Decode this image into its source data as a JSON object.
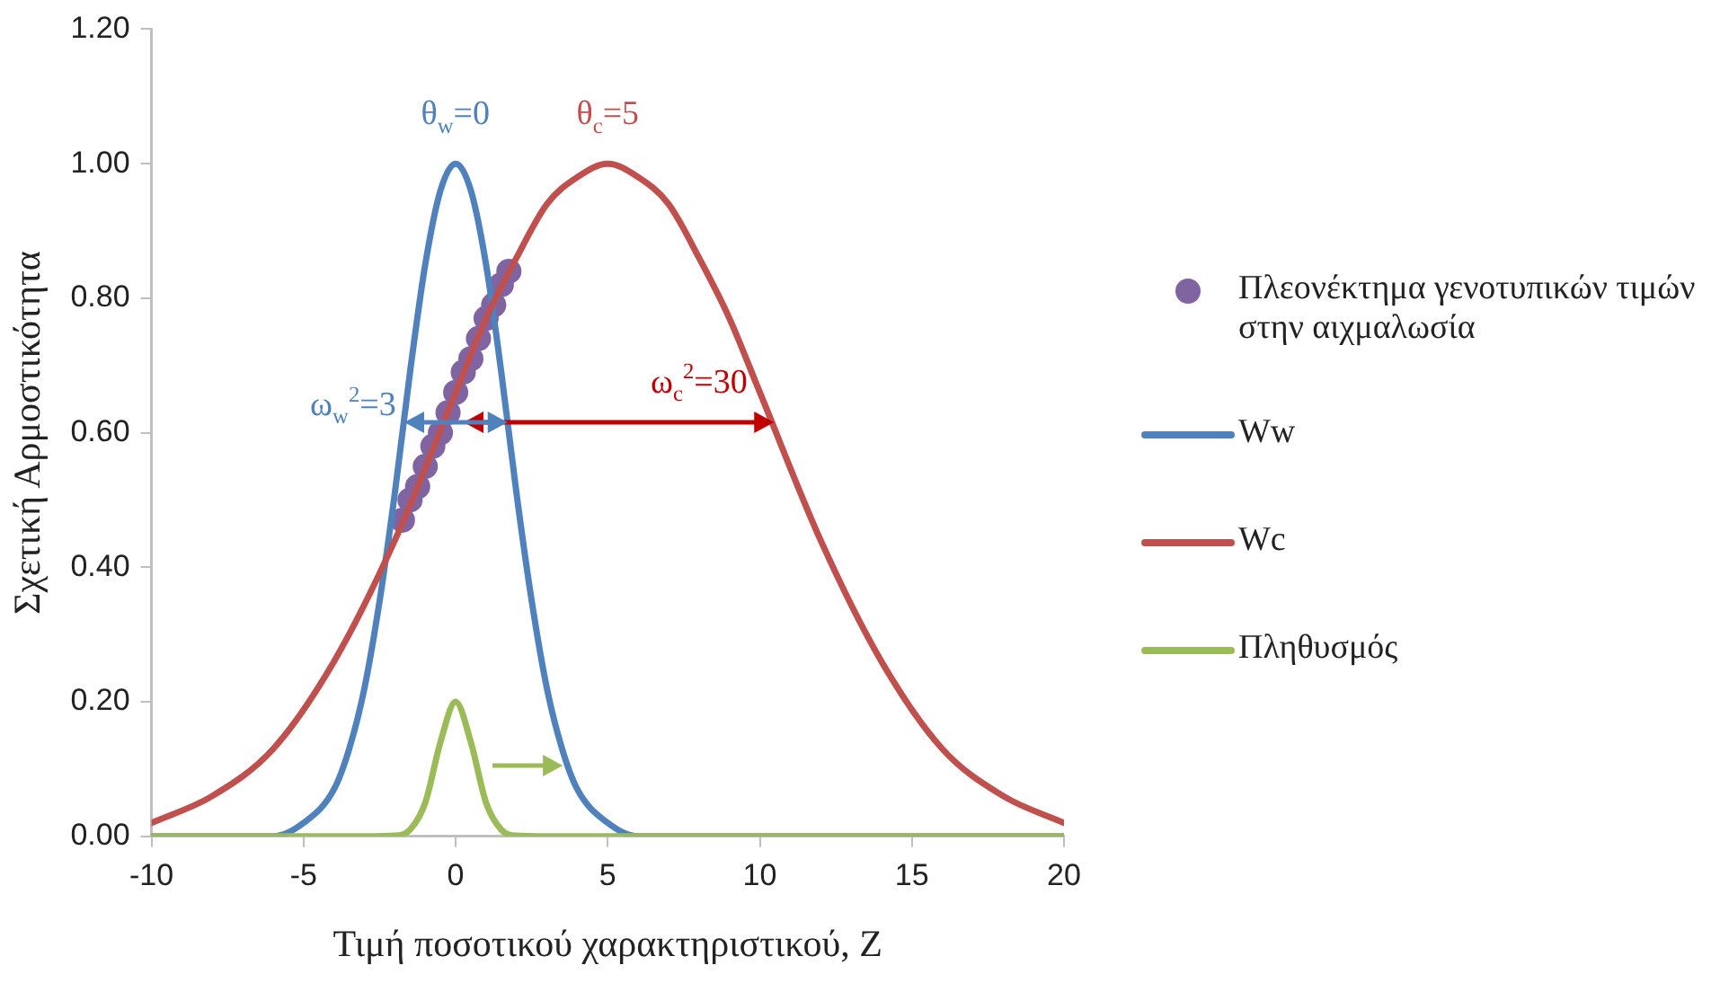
{
  "chart_data": {
    "type": "line",
    "xlabel": "Τιμή ποσοτικού χαρακτηριστικού, Z",
    "ylabel": "Σχετική Αρμοστικότητα",
    "xlim": [
      -10,
      20
    ],
    "xticks": [
      -10,
      -5,
      0,
      5,
      10,
      15,
      20
    ],
    "ylim": [
      0,
      1.2
    ],
    "yticks": [
      {
        "value": 0,
        "label": "0.00"
      },
      {
        "value": 0.2,
        "label": "0.20"
      },
      {
        "value": 0.4,
        "label": "0.40"
      },
      {
        "value": 0.6,
        "label": "0.60"
      },
      {
        "value": 0.8,
        "label": "0.80"
      },
      {
        "value": 1,
        "label": "1.00"
      },
      {
        "value": 1.2,
        "label": "1.20"
      }
    ],
    "grid": false,
    "legend": "right",
    "line_style": "solid",
    "series": [
      {
        "name": "Πλεονέκτημα γενοτυπικών τιμών στην αιχμαλωσία",
        "type": "scatter",
        "marker": "circle",
        "color": "#8064a2",
        "x": [
          -1.75,
          -1.5,
          -1.25,
          -1,
          -0.75,
          -0.5,
          -0.25,
          0,
          0.25,
          0.5,
          0.75,
          1,
          1.25,
          1.5,
          1.75
        ],
        "values": [
          0.47,
          0.5,
          0.52,
          0.55,
          0.58,
          0.6,
          0.63,
          0.66,
          0.69,
          0.71,
          0.74,
          0.77,
          0.79,
          0.82,
          0.84
        ]
      },
      {
        "name": "Ww",
        "type": "line",
        "marker": "none",
        "color": "#4f81bd",
        "x": [
          -10,
          -6,
          -5,
          -4,
          -3.5,
          -3,
          -2.5,
          -2,
          -1.5,
          -1,
          -0.5,
          0,
          0.5,
          1,
          1.5,
          2,
          2.5,
          3,
          3.5,
          4,
          5,
          6,
          20
        ],
        "values": [
          0,
          0,
          0.02,
          0.07,
          0.13,
          0.22,
          0.35,
          0.51,
          0.69,
          0.85,
          0.96,
          1,
          0.96,
          0.85,
          0.69,
          0.51,
          0.35,
          0.22,
          0.13,
          0.07,
          0.02,
          0,
          0
        ]
      },
      {
        "name": "Wc",
        "type": "line",
        "marker": "none",
        "color": "#c0504d",
        "x": [
          -10,
          -8,
          -6,
          -4,
          -2,
          0,
          1,
          2,
          3,
          4,
          5,
          6,
          7,
          8,
          9,
          10,
          12,
          14,
          16,
          18,
          20
        ],
        "values": [
          0.02,
          0.06,
          0.13,
          0.26,
          0.44,
          0.66,
          0.77,
          0.86,
          0.94,
          0.98,
          1,
          0.98,
          0.94,
          0.86,
          0.77,
          0.66,
          0.44,
          0.26,
          0.13,
          0.06,
          0.02
        ]
      },
      {
        "name": "Πληθυσμός",
        "type": "line",
        "marker": "none",
        "color": "#9bbb59",
        "x": [
          -10,
          -3,
          -2,
          -1.5,
          -1,
          -0.5,
          0,
          0.5,
          1,
          1.5,
          2,
          3,
          20
        ],
        "values": [
          0,
          0,
          0.001,
          0.01,
          0.05,
          0.14,
          0.2,
          0.14,
          0.05,
          0.01,
          0.001,
          0,
          0
        ]
      }
    ],
    "annotations": [
      "θ$_{w}$=0",
      "θ$_{c}$=5",
      "ω$_{w}$$^{2}$=3",
      "ω$_{c}$$^{2}$=30"
    ]
  }
}
